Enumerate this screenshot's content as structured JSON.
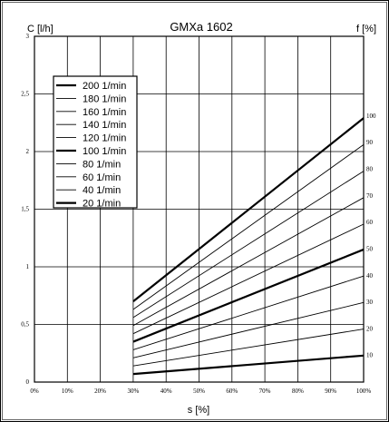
{
  "chart_data": {
    "type": "line",
    "title": "GMXa 1602",
    "xlabel": "s [%]",
    "ylabel_left": "C [l/h]",
    "ylabel_right": "f [%]",
    "x_ticks": [
      "0%",
      "10%",
      "20%",
      "30%",
      "40%",
      "50%",
      "60%",
      "70%",
      "80%",
      "90%",
      "100%"
    ],
    "y_ticks_left": [
      "0",
      "0,5",
      "1",
      "1,5",
      "2",
      "2,5",
      "3"
    ],
    "y_ticks_right": [
      "10",
      "20",
      "30",
      "40",
      "50",
      "60",
      "70",
      "80",
      "90",
      "100"
    ],
    "xlim": [
      0,
      100
    ],
    "ylim_left": [
      0,
      3
    ],
    "ylim_right": [
      0,
      130
    ],
    "grid": true,
    "legend_position": "top-left",
    "series": [
      {
        "name": "200 1/min",
        "bold": true,
        "x": [
          30,
          100
        ],
        "y": [
          0.7,
          2.29
        ]
      },
      {
        "name": "180 1/min",
        "bold": false,
        "x": [
          30,
          100
        ],
        "y": [
          0.63,
          2.06
        ]
      },
      {
        "name": "160 1/min",
        "bold": false,
        "x": [
          30,
          100
        ],
        "y": [
          0.56,
          1.83
        ]
      },
      {
        "name": "140 1/min",
        "bold": false,
        "x": [
          30,
          100
        ],
        "y": [
          0.49,
          1.6
        ]
      },
      {
        "name": "120 1/min",
        "bold": false,
        "x": [
          30,
          100
        ],
        "y": [
          0.42,
          1.37
        ]
      },
      {
        "name": "100 1/min",
        "bold": true,
        "x": [
          30,
          100
        ],
        "y": [
          0.35,
          1.15
        ]
      },
      {
        "name": "80 1/min",
        "bold": false,
        "x": [
          30,
          100
        ],
        "y": [
          0.28,
          0.92
        ]
      },
      {
        "name": "60 1/min",
        "bold": false,
        "x": [
          30,
          100
        ],
        "y": [
          0.21,
          0.69
        ]
      },
      {
        "name": "40 1/min",
        "bold": false,
        "x": [
          30,
          100
        ],
        "y": [
          0.14,
          0.46
        ]
      },
      {
        "name": "20 1/min",
        "bold": true,
        "x": [
          30,
          100
        ],
        "y": [
          0.07,
          0.23
        ]
      }
    ]
  }
}
